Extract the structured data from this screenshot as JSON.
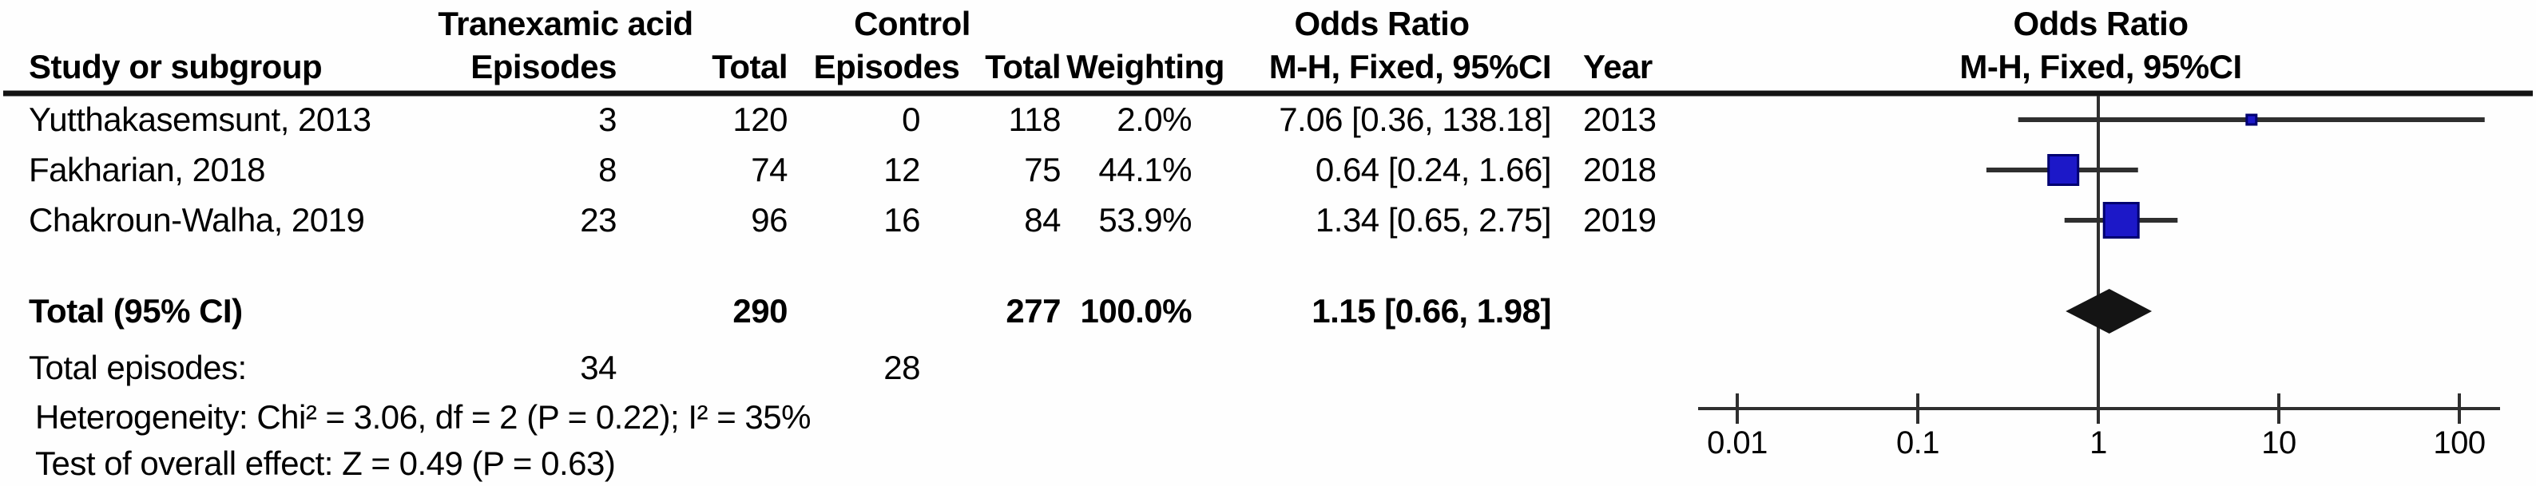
{
  "table": {
    "group_headers": {
      "treatment": "Tranexamic acid",
      "control": "Control",
      "odds_ratio": "Odds Ratio",
      "plot_title": "Odds Ratio"
    },
    "columns": {
      "study": "Study or subgroup",
      "treatment_episodes": "Episodes",
      "treatment_total": "Total",
      "control_episodes": "Episodes",
      "control_total": "Total",
      "weighting": "Weighting",
      "mh_fixed_ci": "M-H, Fixed, 95%CI",
      "year": "Year",
      "plot_subtitle": "M-H, Fixed, 95%CI"
    },
    "rows": [
      {
        "study": "Yutthakasemsunt, 2013",
        "treatment_episodes": "3",
        "treatment_total": "120",
        "control_episodes": "0",
        "control_total": "118",
        "weight": "2.0%",
        "or_ci": "7.06 [0.36, 138.18]",
        "year": "2013"
      },
      {
        "study": "Fakharian, 2018",
        "treatment_episodes": "8",
        "treatment_total": "74",
        "control_episodes": "12",
        "control_total": "75",
        "weight": "44.1%",
        "or_ci": "0.64 [0.24, 1.66]",
        "year": "2018"
      },
      {
        "study": "Chakroun-Walha, 2019",
        "treatment_episodes": "23",
        "treatment_total": "96",
        "control_episodes": "16",
        "control_total": "84",
        "weight": "53.9%",
        "or_ci": "1.34 [0.65, 2.75]",
        "year": "2019"
      }
    ],
    "total_row": {
      "label": "Total (95% CI)",
      "treatment_total": "290",
      "control_total": "277",
      "weight": "100.0%",
      "or_ci": "1.15 [0.66, 1.98]"
    },
    "total_episodes_row": {
      "label": "Total episodes:",
      "treatment": "34",
      "control": "28"
    },
    "heterogeneity": "Heterogeneity: Chi² = 3.06, df = 2 (P = 0.22); I² = 35%",
    "overall_effect": "Test of overall effect: Z = 0.49 (P = 0.63)"
  },
  "chart_data": {
    "type": "scatter",
    "subtype": "forest-plot",
    "title": "Odds Ratio",
    "subtitle": "M-H, Fixed, 95%CI",
    "x_scale": "log",
    "x_range": [
      0.01,
      100
    ],
    "x_ticks": [
      0.01,
      0.1,
      1,
      10,
      100
    ],
    "x_tick_labels": [
      "0.01",
      "0.1",
      "1",
      "10",
      "100"
    ],
    "null_line": 1,
    "studies": [
      {
        "name": "Yutthakasemsunt, 2013",
        "or": 7.06,
        "ci_low": 0.36,
        "ci_high": 138.18,
        "weight_pct": 2.0,
        "year": 2013
      },
      {
        "name": "Fakharian, 2018",
        "or": 0.64,
        "ci_low": 0.24,
        "ci_high": 1.66,
        "weight_pct": 44.1,
        "year": 2018
      },
      {
        "name": "Chakroun-Walha, 2019",
        "or": 1.34,
        "ci_low": 0.65,
        "ci_high": 2.75,
        "weight_pct": 53.9,
        "year": 2019
      }
    ],
    "overall": {
      "or": 1.15,
      "ci_low": 0.66,
      "ci_high": 1.98,
      "weight_pct": 100.0
    },
    "colors": {
      "marker_fill": "#1c18c8",
      "marker_border": "#000070",
      "diamond": "#141414",
      "line": "#2f2f2f",
      "rule": "#141414"
    }
  }
}
